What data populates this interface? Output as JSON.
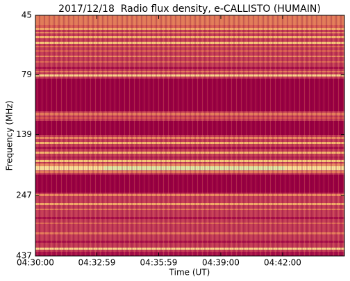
{
  "chart_data": {
    "type": "spectrogram",
    "title": "2017/12/18  Radio flux density, e-CALLISTO (HUMAIN)",
    "xlabel": "Time (UT)",
    "ylabel": "Frequency (MHz)",
    "xlim": [
      "04:30:00",
      "04:45:00"
    ],
    "xticks": [
      "04:30:00",
      "04:32:59",
      "04:35:59",
      "04:39:00",
      "04:42:00"
    ],
    "ylim": [
      437,
      45
    ],
    "yticks": [
      45,
      79,
      139,
      247,
      437
    ],
    "ylog": true
  }
}
